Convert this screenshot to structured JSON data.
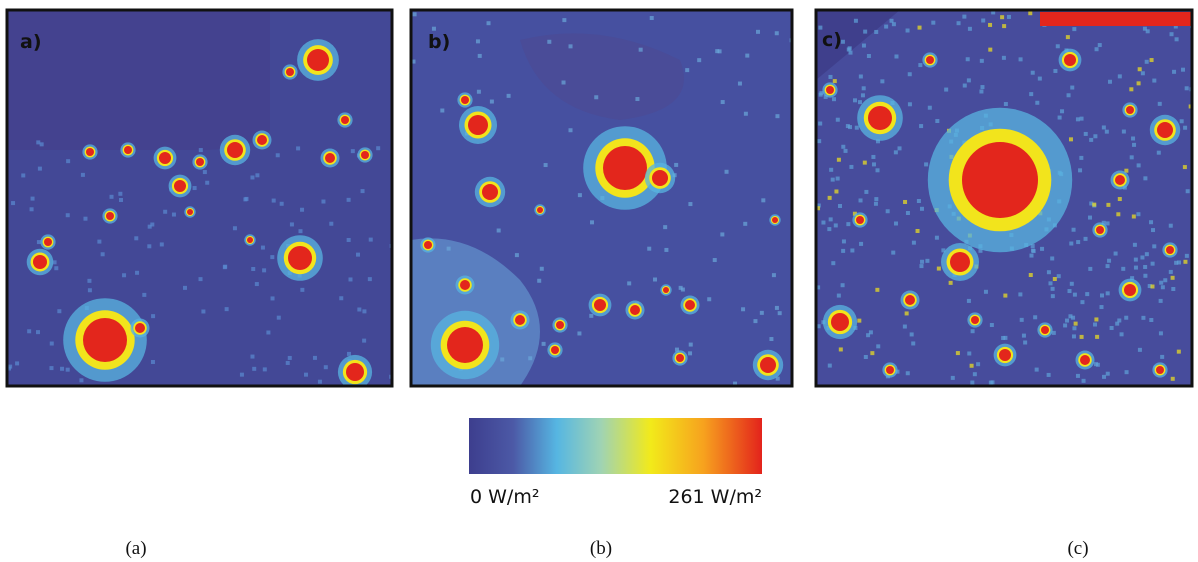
{
  "panels": [
    {
      "label": "a)"
    },
    {
      "label": "b)"
    },
    {
      "label": "c)"
    }
  ],
  "colorbar": {
    "min_label": "0 W/m²",
    "max_label": "261 W/m²"
  },
  "captions": [
    "(a)",
    "(b)",
    "(c)"
  ]
}
